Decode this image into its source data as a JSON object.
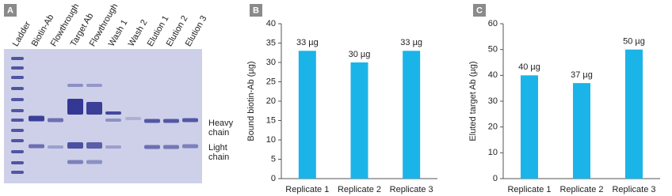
{
  "gel": {
    "panel_label": "A",
    "lanes": [
      "Ladder",
      "Biotin-Ab",
      "Flowthrough",
      "Target Ab",
      "Flowthrough",
      "Wash 1",
      "Wash 2",
      "Elution 1",
      "Elution 2",
      "Elution 3"
    ],
    "band_labels": [
      "Heavy chain",
      "Light chain"
    ]
  },
  "chart_data": [
    {
      "type": "bar",
      "panel_label": "B",
      "y_label": "Bound biotin-Ab (µg)",
      "categories": [
        "Replicate 1",
        "Replicate 2",
        "Replicate 3"
      ],
      "values": [
        33,
        30,
        33
      ],
      "value_labels": [
        "33 µg",
        "30 µg",
        "33 µg"
      ],
      "color": "#1bb4e9",
      "ylim": [
        0,
        40
      ],
      "yticks": [
        0,
        5,
        10,
        15,
        20,
        25,
        30,
        35,
        40
      ],
      "grid": false
    },
    {
      "type": "bar",
      "panel_label": "C",
      "y_label": "Eluted target Ab (µg)",
      "categories": [
        "Replicate 1",
        "Replicate 2",
        "Replicate 3"
      ],
      "values": [
        40,
        37,
        50
      ],
      "value_labels": [
        "40 µg",
        "37 µg",
        "50 µg"
      ],
      "color": "#1bb4e9",
      "ylim": [
        0,
        60
      ],
      "yticks": [
        0,
        10,
        20,
        30,
        40,
        50,
        60
      ],
      "grid": false
    }
  ]
}
